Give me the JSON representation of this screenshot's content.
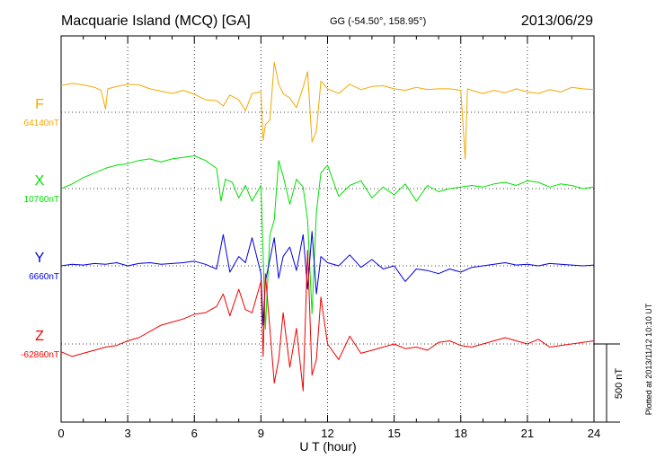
{
  "header": {
    "title": "Macquarie Island (MCQ)  [GA]",
    "coords": "GG (-54.50°, 158.95°)",
    "date": "2013/06/29"
  },
  "footer": {
    "xlabel": "U T (hour)",
    "plotted": "Plotted at 2013/11/12 10:10 UT"
  },
  "chart_data": {
    "type": "line",
    "title": "Macquarie Island (MCQ)  [GA]",
    "xlabel": "U T (hour)",
    "xlim": [
      0,
      24
    ],
    "x_ticks": [
      "0",
      "3",
      "6",
      "9",
      "12",
      "15",
      "18",
      "21",
      "24"
    ],
    "grid": true,
    "scale_bar": "500 nT",
    "series": [
      {
        "name": "F",
        "baseline_label": "64140nT",
        "color": "#f5a800",
        "x": [
          0,
          0.5,
          1,
          1.5,
          1.8,
          2,
          2.1,
          2.5,
          3,
          3.5,
          4,
          4.5,
          5,
          5.5,
          6,
          6.5,
          7,
          7.3,
          7.6,
          8,
          8.3,
          8.6,
          9,
          9.1,
          9.2,
          9.4,
          9.6,
          9.8,
          10,
          10.3,
          10.6,
          10.9,
          11.1,
          11.3,
          11.5,
          11.7,
          12,
          12.5,
          13,
          13.5,
          14,
          14.5,
          15,
          15.5,
          16,
          16.5,
          17,
          17.5,
          18,
          18.2,
          18.3,
          18.5,
          19,
          19.5,
          20,
          20.5,
          21,
          21.5,
          22,
          22.5,
          23,
          23.5,
          24
        ],
        "y": [
          170,
          185,
          175,
          160,
          140,
          20,
          150,
          165,
          180,
          175,
          150,
          135,
          120,
          140,
          115,
          80,
          75,
          40,
          110,
          80,
          10,
          120,
          130,
          -180,
          -80,
          -50,
          320,
          180,
          120,
          90,
          30,
          160,
          260,
          -190,
          -120,
          200,
          150,
          120,
          180,
          145,
          165,
          170,
          150,
          140,
          160,
          145,
          150,
          150,
          140,
          -300,
          150,
          140,
          120,
          140,
          125,
          150,
          130,
          120,
          145,
          130,
          160,
          150,
          145
        ]
      },
      {
        "name": "X",
        "baseline_label": "10760nT",
        "color": "#00e000",
        "x": [
          0,
          0.5,
          1,
          1.5,
          2,
          2.5,
          3,
          3.5,
          4,
          4.5,
          5,
          5.5,
          6,
          6.5,
          7,
          7.2,
          7.4,
          7.7,
          8,
          8.3,
          8.6,
          9,
          9.1,
          9.2,
          9.4,
          9.6,
          9.8,
          10,
          10.3,
          10.6,
          10.9,
          11.1,
          11.3,
          11.5,
          11.7,
          12,
          12.5,
          13,
          13.5,
          14,
          14.5,
          15,
          15.5,
          16,
          16.5,
          17,
          17.5,
          18,
          18.5,
          19,
          19.5,
          20,
          20.5,
          21,
          21.5,
          22,
          22.5,
          23,
          23.5,
          24
        ],
        "y": [
          0,
          30,
          70,
          100,
          130,
          150,
          160,
          180,
          190,
          170,
          190,
          200,
          210,
          180,
          130,
          -80,
          60,
          40,
          -60,
          20,
          -80,
          20,
          -420,
          -900,
          -300,
          -200,
          180,
          80,
          -100,
          60,
          10,
          -200,
          -800,
          -150,
          100,
          150,
          -50,
          20,
          50,
          -60,
          10,
          -40,
          30,
          -80,
          20,
          -20,
          0,
          10,
          20,
          10,
          30,
          40,
          20,
          50,
          40,
          10,
          30,
          20,
          0,
          10
        ]
      },
      {
        "name": "Y",
        "baseline_label": "6660nT",
        "color": "#0000e0",
        "x": [
          0,
          0.5,
          1,
          1.5,
          2,
          2.5,
          3,
          3.5,
          4,
          4.5,
          5,
          5.5,
          6,
          6.5,
          7,
          7.3,
          7.6,
          8,
          8.3,
          8.6,
          9,
          9.1,
          9.2,
          9.4,
          9.6,
          9.8,
          10,
          10.3,
          10.6,
          10.9,
          11.1,
          11.3,
          11.5,
          11.7,
          12,
          12.5,
          13,
          13.5,
          14,
          14.5,
          15,
          15.5,
          16,
          16.5,
          17,
          17.5,
          18,
          18.5,
          19,
          19.5,
          20,
          20.5,
          21,
          21.5,
          22,
          22.5,
          23,
          23.5,
          24
        ],
        "y": [
          0,
          10,
          5,
          15,
          10,
          20,
          0,
          15,
          20,
          10,
          15,
          20,
          30,
          10,
          -20,
          200,
          -40,
          60,
          20,
          180,
          -50,
          -380,
          -100,
          40,
          180,
          -80,
          60,
          120,
          -30,
          200,
          -150,
          220,
          -180,
          60,
          20,
          0,
          70,
          -10,
          40,
          -20,
          0,
          -100,
          -20,
          -30,
          -50,
          -20,
          -40,
          -10,
          0,
          10,
          20,
          5,
          10,
          0,
          15,
          10,
          5,
          0,
          5
        ]
      },
      {
        "name": "Z",
        "baseline_label": "-62860nT",
        "color": "#f00000",
        "x": [
          0,
          0.5,
          1,
          1.5,
          2,
          2.5,
          3,
          3.5,
          4,
          4.5,
          5,
          5.5,
          6,
          6.5,
          7,
          7.3,
          7.6,
          8,
          8.3,
          8.6,
          9,
          9.1,
          9.2,
          9.4,
          9.6,
          9.8,
          10,
          10.3,
          10.6,
          10.9,
          11.1,
          11.3,
          11.5,
          11.7,
          12,
          12.5,
          13,
          13.5,
          14,
          14.5,
          15,
          15.5,
          16,
          16.5,
          17,
          17.5,
          18,
          18.5,
          19,
          19.5,
          20,
          20.5,
          21,
          21.5,
          22,
          22.5,
          23,
          23.5,
          24
        ],
        "y": [
          -50,
          -80,
          -60,
          -40,
          -20,
          -10,
          20,
          40,
          80,
          120,
          140,
          160,
          190,
          200,
          240,
          320,
          180,
          350,
          220,
          200,
          400,
          -80,
          450,
          100,
          -250,
          -100,
          200,
          -150,
          100,
          -300,
          600,
          -200,
          -100,
          300,
          0,
          -100,
          50,
          -60,
          -40,
          -20,
          0,
          -30,
          -20,
          -40,
          10,
          20,
          -10,
          -20,
          0,
          20,
          40,
          20,
          0,
          30,
          -20,
          -10,
          0,
          10,
          20
        ]
      }
    ]
  }
}
